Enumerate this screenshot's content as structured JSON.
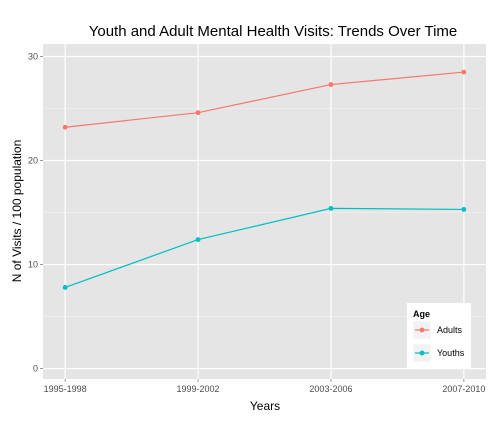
{
  "chart_data": {
    "type": "line",
    "title": "Youth and Adult Mental Health Visits: Trends Over Time",
    "xlabel": "Years",
    "ylabel": "N of Visits / 100 population",
    "categories": [
      "1995-1998",
      "1999-2002",
      "2003-2006",
      "2007-2010"
    ],
    "ylim": [
      -1,
      31.2
    ],
    "yticks": [
      0,
      10,
      20,
      30
    ],
    "grid": true,
    "legend": {
      "title": "Age",
      "position": "bottom-right"
    },
    "series": [
      {
        "name": "Adults",
        "color": "#f8766d",
        "values": [
          23.2,
          24.6,
          27.3,
          28.5
        ]
      },
      {
        "name": "Youths",
        "color": "#00bfc4",
        "values": [
          7.8,
          12.4,
          15.4,
          15.3
        ]
      }
    ]
  }
}
